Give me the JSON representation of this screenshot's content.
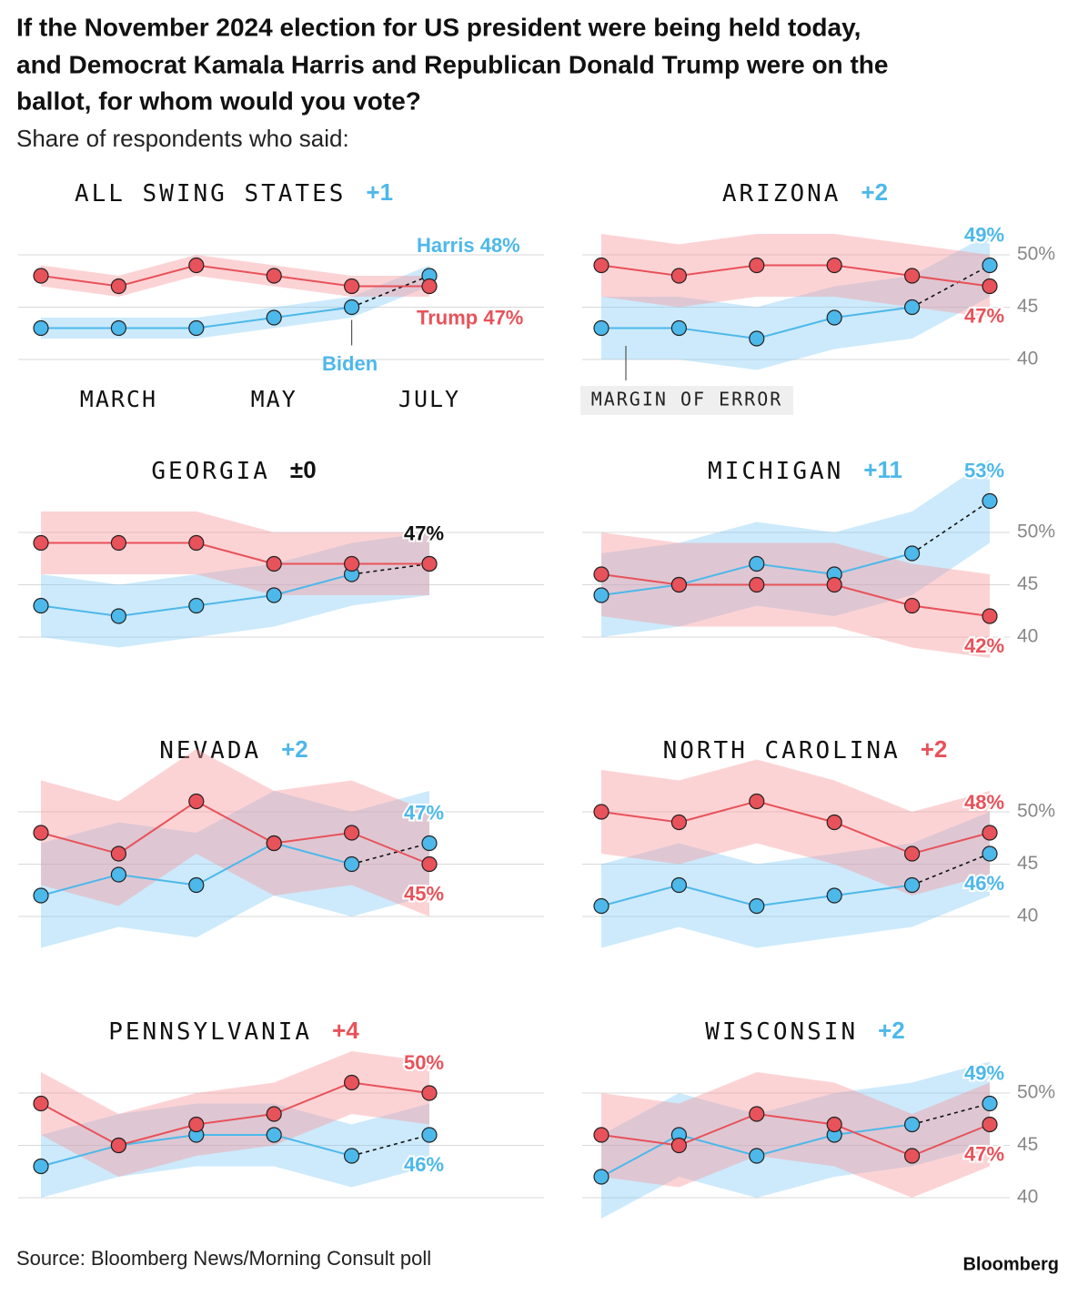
{
  "title": "If the November 2024 election for US president were being held today, and Democrat Kamala Harris and Republican Donald Trump were on the ballot, for whom would you vote?",
  "title_lines": [
    "If the November 2024 election for US president were being held today,",
    "and Democrat Kamala Harris and Republican Donald Trump were on the",
    "ballot, for whom would you vote?"
  ],
  "subtitle": "Share of respondents who said:",
  "source": "Source: Bloomberg News/Morning Consult poll",
  "brand": "Bloomberg",
  "chart_data": [
    {
      "type": "line",
      "title": "ALL SWING STATES",
      "lead": "+1",
      "lead_color": "#4db8ea",
      "categories": [
        null,
        "MARCH",
        null,
        "MAY",
        null,
        "JULY"
      ],
      "ylim": [
        36,
        54
      ],
      "yticks": [
        40,
        45,
        50
      ],
      "tick_labels": false,
      "grid": true,
      "annotations": [
        "Biden"
      ],
      "series": [
        {
          "color": "#4db8ea",
          "values": [
            43,
            43,
            43,
            44,
            45,
            48
          ],
          "moe": 1,
          "value_labels": [
            null,
            null,
            null,
            null,
            null,
            "Harris 48%"
          ],
          "label_pos": "above"
        },
        {
          "color": "#e8525a",
          "values": [
            48,
            47,
            49,
            48,
            47,
            47
          ],
          "moe": 1,
          "value_labels": [
            null,
            null,
            null,
            null,
            null,
            "Trump 47%"
          ],
          "label_pos": "below"
        }
      ]
    },
    {
      "type": "line",
      "title": "ARIZONA",
      "lead": "+2",
      "lead_color": "#4db8ea",
      "ylim": [
        36,
        54
      ],
      "yticks": [
        40,
        45,
        {
          "value": 50,
          "label": "50%"
        }
      ],
      "tick_labels": true,
      "grid": true,
      "annotations": [
        "MARGIN OF ERROR"
      ],
      "series": [
        {
          "color": "#4db8ea",
          "values": [
            43,
            43,
            42,
            44,
            45,
            49
          ],
          "moe": 3,
          "value_labels": [
            null,
            null,
            null,
            null,
            null,
            "49%"
          ],
          "label_pos": "above"
        },
        {
          "color": "#e8525a",
          "values": [
            49,
            48,
            49,
            49,
            48,
            47
          ],
          "moe": 3,
          "value_labels": [
            null,
            null,
            null,
            null,
            null,
            "47%"
          ],
          "label_pos": "below"
        }
      ]
    },
    {
      "type": "line",
      "title": "GEORGIA",
      "lead": "±0",
      "lead_color": "#111111",
      "ylim": [
        36,
        54
      ],
      "yticks": [
        40,
        45,
        50
      ],
      "tick_labels": false,
      "grid": true,
      "series": [
        {
          "color": "#4db8ea",
          "values": [
            43,
            42,
            43,
            44,
            46,
            47
          ],
          "moe": 3
        },
        {
          "color": "#e8525a",
          "values": [
            49,
            49,
            49,
            47,
            47,
            47
          ],
          "moe": 3,
          "value_labels": [
            null,
            null,
            null,
            null,
            null,
            "47%"
          ],
          "label_pos": "above",
          "label_color": "#111111"
        }
      ]
    },
    {
      "type": "line",
      "title": "MICHIGAN",
      "lead": "+11",
      "lead_color": "#4db8ea",
      "ylim": [
        36,
        54
      ],
      "yticks": [
        40,
        45,
        {
          "value": 50,
          "label": "50%"
        }
      ],
      "tick_labels": true,
      "grid": true,
      "series": [
        {
          "color": "#4db8ea",
          "values": [
            44,
            45,
            47,
            46,
            48,
            53
          ],
          "moe": 4,
          "value_labels": [
            null,
            null,
            null,
            null,
            null,
            "53%"
          ],
          "label_pos": "above"
        },
        {
          "color": "#e8525a",
          "values": [
            46,
            45,
            45,
            45,
            43,
            42
          ],
          "moe": 4,
          "value_labels": [
            null,
            null,
            null,
            null,
            null,
            "42%"
          ],
          "label_pos": "below"
        }
      ]
    },
    {
      "type": "line",
      "title": "NEVADA",
      "lead": "+2",
      "lead_color": "#4db8ea",
      "ylim": [
        36,
        54
      ],
      "yticks": [
        40,
        45,
        50
      ],
      "tick_labels": false,
      "grid": true,
      "series": [
        {
          "color": "#4db8ea",
          "values": [
            42,
            44,
            43,
            47,
            45,
            47
          ],
          "moe": 5,
          "value_labels": [
            null,
            null,
            null,
            null,
            null,
            "47%"
          ],
          "label_pos": "above"
        },
        {
          "color": "#e8525a",
          "values": [
            48,
            46,
            51,
            47,
            48,
            45
          ],
          "moe": 5,
          "value_labels": [
            null,
            null,
            null,
            null,
            null,
            "45%"
          ],
          "label_pos": "below"
        }
      ]
    },
    {
      "type": "line",
      "title": "NORTH CAROLINA",
      "lead": "+2",
      "lead_color": "#e8525a",
      "ylim": [
        36,
        54
      ],
      "yticks": [
        40,
        45,
        {
          "value": 50,
          "label": "50%"
        }
      ],
      "tick_labels": true,
      "grid": true,
      "series": [
        {
          "color": "#4db8ea",
          "values": [
            41,
            43,
            41,
            42,
            43,
            46
          ],
          "moe": 4,
          "value_labels": [
            null,
            null,
            null,
            null,
            null,
            "46%"
          ],
          "label_pos": "below"
        },
        {
          "color": "#e8525a",
          "values": [
            50,
            49,
            51,
            49,
            46,
            48
          ],
          "moe": 4,
          "value_labels": [
            null,
            null,
            null,
            null,
            null,
            "48%"
          ],
          "label_pos": "above"
        }
      ]
    },
    {
      "type": "line",
      "title": "PENNSYLVANIA",
      "lead": "+4",
      "lead_color": "#e8525a",
      "ylim": [
        36,
        54
      ],
      "yticks": [
        40,
        45,
        50
      ],
      "tick_labels": false,
      "grid": true,
      "series": [
        {
          "color": "#4db8ea",
          "values": [
            43,
            45,
            46,
            46,
            44,
            46
          ],
          "moe": 3,
          "value_labels": [
            null,
            null,
            null,
            null,
            null,
            "46%"
          ],
          "label_pos": "below"
        },
        {
          "color": "#e8525a",
          "values": [
            49,
            45,
            47,
            48,
            51,
            50
          ],
          "moe": 3,
          "value_labels": [
            null,
            null,
            null,
            null,
            null,
            "50%"
          ],
          "label_pos": "above"
        }
      ]
    },
    {
      "type": "line",
      "title": "WISCONSIN",
      "lead": "+2",
      "lead_color": "#4db8ea",
      "ylim": [
        36,
        54
      ],
      "yticks": [
        40,
        45,
        {
          "value": 50,
          "label": "50%"
        }
      ],
      "tick_labels": true,
      "grid": true,
      "series": [
        {
          "color": "#4db8ea",
          "values": [
            42,
            46,
            44,
            46,
            47,
            49
          ],
          "moe": 4,
          "value_labels": [
            null,
            null,
            null,
            null,
            null,
            "49%"
          ],
          "label_pos": "above"
        },
        {
          "color": "#e8525a",
          "values": [
            46,
            45,
            48,
            47,
            44,
            47
          ],
          "moe": 4,
          "value_labels": [
            null,
            null,
            null,
            null,
            null,
            "47%"
          ],
          "label_pos": "below"
        }
      ]
    }
  ]
}
